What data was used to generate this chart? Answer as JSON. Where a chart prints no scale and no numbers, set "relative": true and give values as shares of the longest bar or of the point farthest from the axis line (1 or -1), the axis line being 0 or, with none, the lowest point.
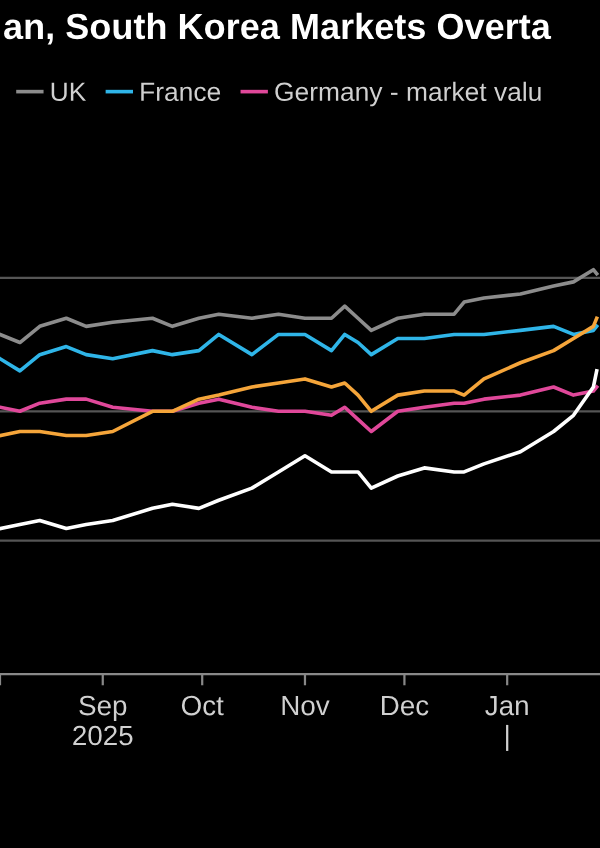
{
  "chart_data": {
    "type": "line",
    "title": "an, South Korea Markets Overta",
    "relative": true,
    "ref_lines": [
      {
        "axis": "y",
        "value": 0.33,
        "color": "#555555"
      },
      {
        "axis": "y",
        "value": 0.65,
        "color": "#555555"
      },
      {
        "axis": "y",
        "value": 0.98,
        "color": "#555555"
      }
    ],
    "legend": "top",
    "marker": "none",
    "line_style": "solid",
    "x": [
      "2025-08-01",
      "2025-08-07",
      "2025-08-13",
      "2025-08-21",
      "2025-08-27",
      "2025-09-04",
      "2025-09-16",
      "2025-09-22",
      "2025-09-30",
      "2025-10-06",
      "2025-10-16",
      "2025-10-24",
      "2025-11-01",
      "2025-11-09",
      "2025-11-13",
      "2025-11-17",
      "2025-11-21",
      "2025-11-29",
      "2025-12-07",
      "2025-12-16",
      "2025-12-19",
      "2025-12-25",
      "2026-01-05",
      "2026-01-15",
      "2026-01-21",
      "2026-01-27",
      "2026-01-28"
    ],
    "xlim": [
      "2025-08-01",
      "2026-01-29"
    ],
    "xticks": [
      {
        "value": "2025-08-01",
        "label": null
      },
      {
        "value": "2025-09-01",
        "label": "Sep\n2025"
      },
      {
        "value": "2025-10-01",
        "label": "Oct"
      },
      {
        "value": "2025-11-01",
        "label": "Nov"
      },
      {
        "value": "2025-12-01",
        "label": "Dec"
      },
      {
        "value": "2026-01-01",
        "label": "Jan\n|"
      }
    ],
    "series": [
      {
        "name": "UK",
        "color": "#8c8c8c",
        "values": [
          0.84,
          0.82,
          0.86,
          0.88,
          0.86,
          0.87,
          0.88,
          0.86,
          0.88,
          0.89,
          0.88,
          0.89,
          0.88,
          0.88,
          0.91,
          0.88,
          0.85,
          0.88,
          0.89,
          0.89,
          0.92,
          0.93,
          0.94,
          0.96,
          0.97,
          1.0,
          0.99
        ]
      },
      {
        "name": "France",
        "color": "#2fb5e8",
        "values": [
          0.78,
          0.75,
          0.79,
          0.81,
          0.79,
          0.78,
          0.8,
          0.79,
          0.8,
          0.84,
          0.79,
          0.84,
          0.84,
          0.8,
          0.84,
          0.82,
          0.79,
          0.83,
          0.83,
          0.84,
          0.84,
          0.84,
          0.85,
          0.86,
          0.84,
          0.85,
          0.86
        ]
      },
      {
        "name": "Germany - market valu",
        "color": "#e0489a",
        "values": [
          0.66,
          0.65,
          0.67,
          0.68,
          0.68,
          0.66,
          0.65,
          0.65,
          0.67,
          0.68,
          0.66,
          0.65,
          0.65,
          0.64,
          0.66,
          0.63,
          0.6,
          0.65,
          0.66,
          0.67,
          0.67,
          0.68,
          0.69,
          0.71,
          0.69,
          0.7,
          0.71
        ]
      },
      {
        "color": "#f5a53a",
        "values": [
          0.59,
          0.6,
          0.6,
          0.59,
          0.59,
          0.6,
          0.65,
          0.65,
          0.68,
          0.69,
          0.71,
          0.72,
          0.73,
          0.71,
          0.72,
          0.69,
          0.65,
          0.69,
          0.7,
          0.7,
          0.69,
          0.73,
          0.77,
          0.8,
          0.83,
          0.86,
          0.88
        ]
      },
      {
        "color": "#ffffff",
        "values": [
          0.36,
          0.37,
          0.38,
          0.36,
          0.37,
          0.38,
          0.41,
          0.42,
          0.41,
          0.43,
          0.46,
          0.5,
          0.54,
          0.5,
          0.5,
          0.5,
          0.46,
          0.49,
          0.51,
          0.5,
          0.5,
          0.52,
          0.55,
          0.6,
          0.64,
          0.71,
          0.75
        ]
      }
    ]
  }
}
